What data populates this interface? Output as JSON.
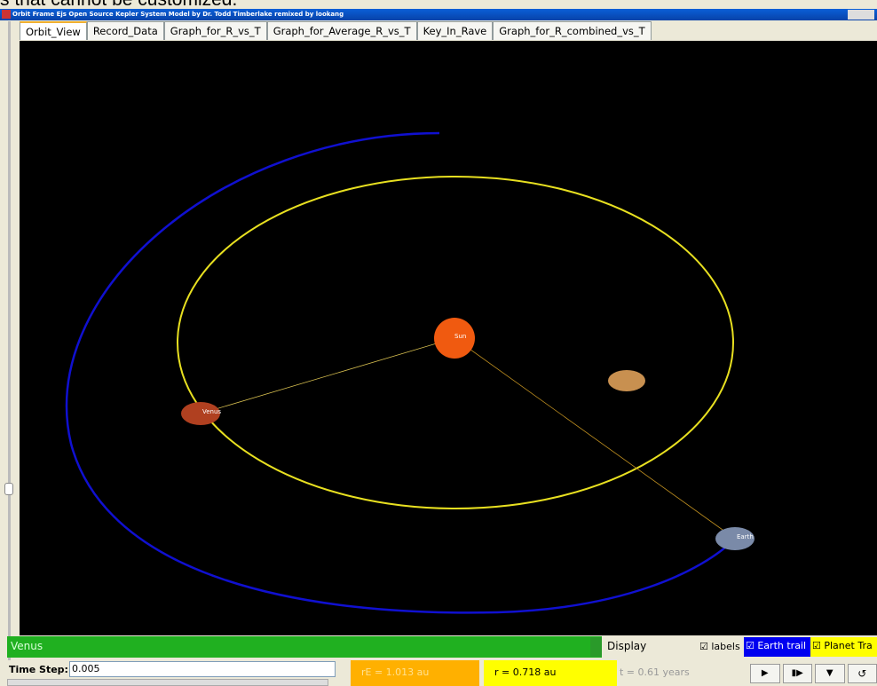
{
  "caption": "s that cannot be customized.",
  "window": {
    "title": "Orbit Frame Ejs Open Source Kepler System Model by Dr. Todd Timberlake remixed by lookang"
  },
  "tabs": [
    "Orbit_View",
    "Record_Data",
    "Graph_for_R_vs_T",
    "Graph_for_Average_R_vs_T",
    "Key_In_Rave",
    "Graph_for_R_combined_vs_T"
  ],
  "view": {
    "labels": [
      "Sun",
      "Venus",
      "Earth"
    ]
  },
  "controls": {
    "planet": "Venus",
    "display": "Display",
    "checkboxes": [
      "labels",
      "Earth trail",
      "Planet Tra"
    ],
    "time_step_label": "Time Step:",
    "time_step": "0.005",
    "rE": "rE = 1.013 au",
    "r": "r = 0.718 au",
    "t": "t = 0.61 years"
  }
}
